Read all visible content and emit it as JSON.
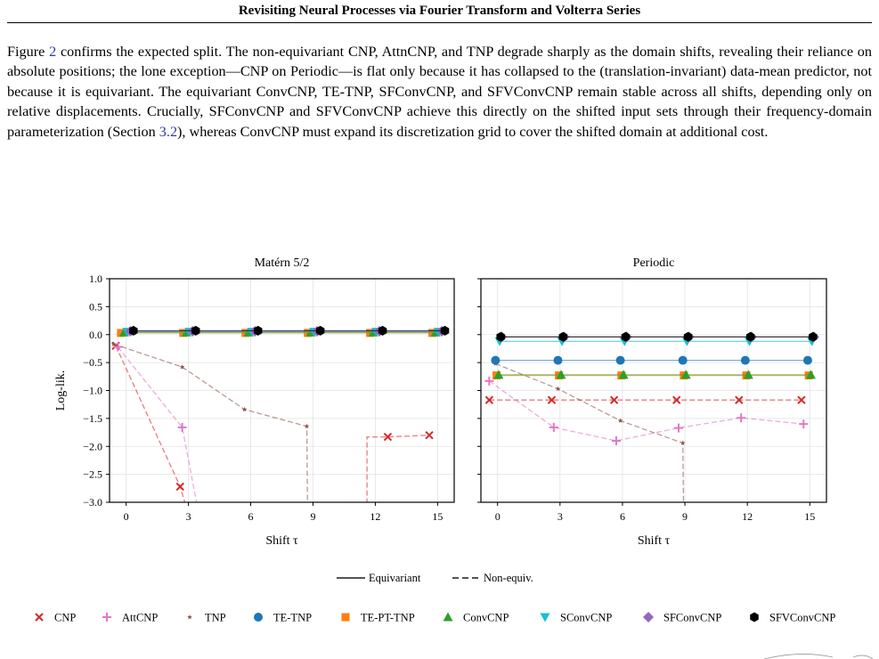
{
  "header": {
    "running_title": "Revisiting Neural Processes via Fourier Transform and Volterra Series"
  },
  "paragraph": {
    "t1": "Figure ",
    "ref_figure": "2",
    "t2": " confirms the expected split.  The non-equivariant CNP, AttnCNP, and TNP degrade sharply as the domain shifts, revealing their reliance on absolute positions; the lone exception—CNP on Periodic—is flat only because it has collapsed to the (translation-invariant) data-mean predictor, not because it is equivariant.  The equivariant ConvCNP, TE-TNP, SFConvCNP, and SFVConvCNP remain stable across all shifts, depending only on relative displacements. Crucially, SFConvCNP and SFVConvCNP achieve this directly on the shifted input sets through their frequency-domain parameterization (Section ",
    "ref_section": "3.2",
    "t3": "), whereas ConvCNP must expand its discretization grid to cover the shifted domain at additional cost."
  },
  "figure": {
    "line_style_legend": {
      "solid": "Equivariant",
      "dashed": "Non-equiv."
    },
    "model_legend": [
      {
        "name": "CNP",
        "marker": "x",
        "color": "#d62728"
      },
      {
        "name": "AttCNP",
        "marker": "plus",
        "color": "#e377c2"
      },
      {
        "name": "TNP",
        "marker": "star",
        "color": "#8c564b"
      },
      {
        "name": "TE-TNP",
        "marker": "circle",
        "color": "#1f77b4"
      },
      {
        "name": "TE-PT-TNP",
        "marker": "square",
        "color": "#ff7f0e"
      },
      {
        "name": "ConvCNP",
        "marker": "triangle-up",
        "color": "#2ca02c"
      },
      {
        "name": "SConvCNP",
        "marker": "triangle-down",
        "color": "#17becf"
      },
      {
        "name": "SFConvCNP",
        "marker": "diamond",
        "color": "#9467bd"
      },
      {
        "name": "SFVConvCNP",
        "marker": "hexagon",
        "color": "#000000"
      }
    ]
  },
  "chart_data": [
    {
      "type": "line",
      "title": "Matérn 5/2",
      "xlabel": "Shift τ",
      "ylabel": "Log-lik.",
      "xlim": [
        -0.8,
        15.8
      ],
      "ylim": [
        -3.0,
        1.0
      ],
      "xticks": [
        "0",
        "3",
        "6",
        "9",
        "12",
        "15"
      ],
      "yticks": [
        "1.0",
        "0.5",
        "0.0",
        "−0.5",
        "−1.0",
        "−1.5",
        "−2.0",
        "−2.5",
        "−3.0"
      ],
      "grid": true,
      "series": [
        {
          "name": "CNP",
          "style": "dashed",
          "x": [
            -0.5,
            2.6,
            3.3
          ],
          "y": [
            -0.2,
            -2.72,
            -3.6
          ],
          "markers": [
            1,
            1,
            0
          ]
        },
        {
          "name": "CNP",
          "style": "dashed",
          "x": [
            11.6,
            11.6,
            12.6,
            14.6
          ],
          "y": [
            -3.6,
            -1.83,
            -1.83,
            -1.8
          ],
          "markers": [
            0,
            0,
            1,
            1
          ]
        },
        {
          "name": "AttCNP",
          "style": "dashed",
          "x": [
            -0.4,
            2.7,
            3.7
          ],
          "y": [
            -0.22,
            -1.66,
            -3.6
          ],
          "markers": [
            1,
            1,
            0
          ]
        },
        {
          "name": "TNP",
          "style": "dashed",
          "x": [
            -0.6,
            2.7,
            5.7,
            8.7,
            8.75
          ],
          "y": [
            -0.17,
            -0.58,
            -1.34,
            -1.64,
            -3.6
          ],
          "markers": [
            1,
            1,
            1,
            1,
            0
          ]
        },
        {
          "name": "TE-PT-TNP",
          "style": "solid",
          "x": [
            0,
            3,
            6,
            9,
            12,
            15
          ],
          "y": [
            0.03,
            0.03,
            0.03,
            0.03,
            0.03,
            0.03
          ],
          "offset": -0.25
        },
        {
          "name": "ConvCNP",
          "style": "solid",
          "x": [
            0,
            3,
            6,
            9,
            12,
            15
          ],
          "y": [
            0.04,
            0.04,
            0.04,
            0.04,
            0.04,
            0.04
          ],
          "offset": -0.1
        },
        {
          "name": "SConvCNP",
          "style": "solid",
          "x": [
            0,
            3,
            6,
            9,
            12,
            15
          ],
          "y": [
            0.05,
            0.05,
            0.05,
            0.05,
            0.05,
            0.05
          ],
          "offset": 0.05
        },
        {
          "name": "SFConvCNP",
          "style": "solid",
          "x": [
            0,
            3,
            6,
            9,
            12,
            15
          ],
          "y": [
            0.06,
            0.06,
            0.06,
            0.06,
            0.06,
            0.06
          ],
          "offset": 0.2
        },
        {
          "name": "SFVConvCNP",
          "style": "solid",
          "x": [
            0,
            3,
            6,
            9,
            12,
            15
          ],
          "y": [
            0.07,
            0.07,
            0.07,
            0.07,
            0.07,
            0.07
          ],
          "offset": 0.35
        }
      ]
    },
    {
      "type": "line",
      "title": "Periodic",
      "xlabel": "Shift τ",
      "ylabel": "",
      "xlim": [
        -0.8,
        15.8
      ],
      "ylim": [
        -3.0,
        1.0
      ],
      "xticks": [
        "0",
        "3",
        "6",
        "9",
        "12",
        "15"
      ],
      "yticks": [
        "1.0",
        "0.5",
        "0.0",
        "−0.5",
        "−1.0",
        "−1.5",
        "−2.0",
        "−2.5",
        "−3.0"
      ],
      "grid": true,
      "series": [
        {
          "name": "CNP",
          "style": "dashed",
          "x": [
            -0.4,
            2.6,
            5.6,
            8.6,
            11.6,
            14.6
          ],
          "y": [
            -1.17,
            -1.17,
            -1.17,
            -1.17,
            -1.17,
            -1.17
          ]
        },
        {
          "name": "AttCNP",
          "style": "dashed",
          "x": [
            -0.4,
            2.7,
            5.7,
            8.7,
            11.7,
            14.7
          ],
          "y": [
            -0.83,
            -1.66,
            -1.9,
            -1.67,
            -1.49,
            -1.6
          ]
        },
        {
          "name": "TNP",
          "style": "dashed",
          "x": [
            -0.1,
            2.9,
            5.9,
            8.9,
            8.95
          ],
          "y": [
            -0.52,
            -0.97,
            -1.54,
            -1.94,
            -3.6
          ],
          "markers": [
            1,
            1,
            1,
            1,
            0
          ]
        },
        {
          "name": "TE-TNP",
          "style": "solid",
          "x": [
            0,
            3,
            6,
            9,
            12,
            15
          ],
          "y": [
            -0.46,
            -0.46,
            -0.46,
            -0.46,
            -0.46,
            -0.46
          ],
          "offset": -0.1
        },
        {
          "name": "TE-PT-TNP",
          "style": "solid",
          "x": [
            0,
            3,
            6,
            9,
            12,
            15
          ],
          "y": [
            -0.73,
            -0.73,
            -0.73,
            -0.73,
            -0.73,
            -0.73
          ],
          "offset": -0.05
        },
        {
          "name": "ConvCNP",
          "style": "solid",
          "x": [
            0,
            3,
            6,
            9,
            12,
            15
          ],
          "y": [
            -0.72,
            -0.72,
            -0.72,
            -0.72,
            -0.72,
            -0.72
          ],
          "offset": 0.05
        },
        {
          "name": "SConvCNP",
          "style": "solid",
          "x": [
            0,
            3,
            6,
            9,
            12,
            15
          ],
          "y": [
            -0.12,
            -0.12,
            -0.12,
            -0.12,
            -0.12,
            -0.12
          ],
          "offset": 0.1
        },
        {
          "name": "SFConvCNP",
          "style": "solid",
          "x": [
            0,
            3,
            6,
            9,
            12,
            15
          ],
          "y": [
            -0.04,
            -0.04,
            -0.04,
            -0.04,
            -0.04,
            -0.04
          ],
          "offset": 0.2
        },
        {
          "name": "SFVConvCNP",
          "style": "solid",
          "x": [
            0,
            3,
            6,
            9,
            12,
            15
          ],
          "y": [
            -0.04,
            -0.04,
            -0.04,
            -0.04,
            -0.04,
            -0.04
          ],
          "offset": 0.15
        }
      ]
    }
  ]
}
